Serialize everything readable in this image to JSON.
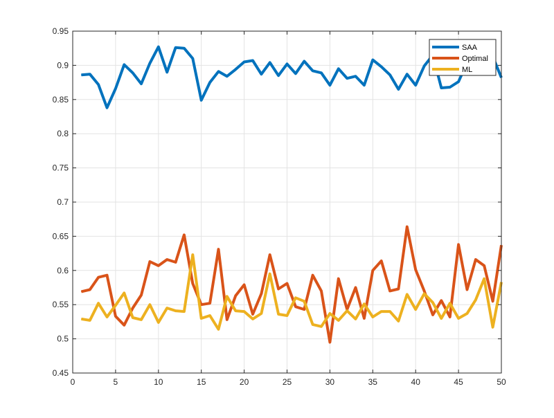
{
  "chart_data": {
    "type": "line",
    "title": "",
    "xlabel": "",
    "ylabel": "",
    "xlim": [
      0,
      50
    ],
    "ylim": [
      0.45,
      0.95
    ],
    "xticks": [
      0,
      5,
      10,
      15,
      20,
      25,
      30,
      35,
      40,
      45,
      50
    ],
    "yticks": [
      0.45,
      0.5,
      0.55,
      0.6,
      0.65,
      0.7,
      0.75,
      0.8,
      0.85,
      0.9,
      0.95
    ],
    "xtick_labels": [
      "0",
      "5",
      "10",
      "15",
      "20",
      "25",
      "30",
      "35",
      "40",
      "45",
      "50"
    ],
    "ytick_labels": [
      "0.45",
      "0.5",
      "0.55",
      "0.6",
      "0.65",
      "0.7",
      "0.75",
      "0.8",
      "0.85",
      "0.9",
      "0.95"
    ],
    "grid": true,
    "legend_position": "top-right",
    "x": [
      1,
      2,
      3,
      4,
      5,
      6,
      7,
      8,
      9,
      10,
      11,
      12,
      13,
      14,
      15,
      16,
      17,
      18,
      19,
      20,
      21,
      22,
      23,
      24,
      25,
      26,
      27,
      28,
      29,
      30,
      31,
      32,
      33,
      34,
      35,
      36,
      37,
      38,
      39,
      40,
      41,
      42,
      43,
      44,
      45,
      46,
      47,
      48,
      49,
      50
    ],
    "series": [
      {
        "name": "SAA",
        "color": "#0072BD",
        "values": [
          0.886,
          0.887,
          0.872,
          0.838,
          0.866,
          0.901,
          0.889,
          0.873,
          0.903,
          0.927,
          0.89,
          0.926,
          0.925,
          0.91,
          0.849,
          0.875,
          0.891,
          0.884,
          0.894,
          0.905,
          0.907,
          0.887,
          0.904,
          0.885,
          0.902,
          0.888,
          0.906,
          0.892,
          0.889,
          0.871,
          0.895,
          0.881,
          0.884,
          0.871,
          0.908,
          0.898,
          0.886,
          0.865,
          0.887,
          0.871,
          0.899,
          0.915,
          0.867,
          0.868,
          0.876,
          0.904,
          0.913,
          0.925,
          0.913,
          0.882
        ]
      },
      {
        "name": "Optimal",
        "color": "#D95319",
        "values": [
          0.569,
          0.572,
          0.59,
          0.593,
          0.533,
          0.52,
          0.545,
          0.564,
          0.613,
          0.607,
          0.616,
          0.612,
          0.652,
          0.581,
          0.55,
          0.552,
          0.631,
          0.528,
          0.563,
          0.579,
          0.536,
          0.566,
          0.623,
          0.573,
          0.581,
          0.547,
          0.543,
          0.593,
          0.57,
          0.495,
          0.588,
          0.543,
          0.575,
          0.53,
          0.6,
          0.614,
          0.57,
          0.573,
          0.664,
          0.601,
          0.57,
          0.535,
          0.556,
          0.532,
          0.638,
          0.572,
          0.616,
          0.607,
          0.555,
          0.637
        ]
      },
      {
        "name": "ML",
        "color": "#EDB120",
        "values": [
          0.529,
          0.527,
          0.552,
          0.532,
          0.549,
          0.567,
          0.531,
          0.528,
          0.55,
          0.524,
          0.545,
          0.541,
          0.54,
          0.623,
          0.53,
          0.534,
          0.514,
          0.562,
          0.541,
          0.54,
          0.529,
          0.537,
          0.595,
          0.536,
          0.534,
          0.56,
          0.555,
          0.521,
          0.518,
          0.537,
          0.527,
          0.541,
          0.529,
          0.551,
          0.532,
          0.54,
          0.54,
          0.526,
          0.565,
          0.543,
          0.566,
          0.553,
          0.53,
          0.552,
          0.53,
          0.537,
          0.557,
          0.588,
          0.517,
          0.583
        ]
      }
    ]
  }
}
